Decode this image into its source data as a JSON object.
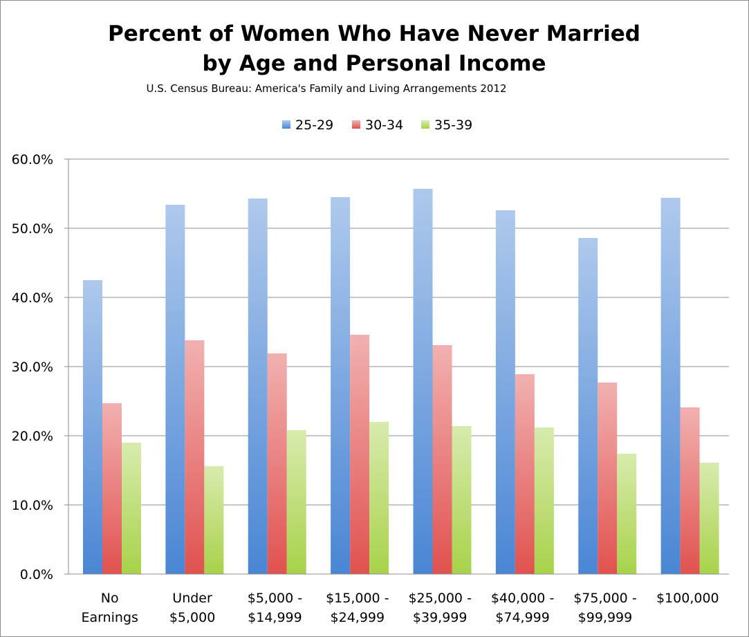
{
  "chart_data": {
    "type": "bar",
    "title_lines": [
      "Percent of Women Who Have Never Married",
      "by Age and Personal Income"
    ],
    "subtitle": "U.S. Census Bureau: America's Family and Living Arrangements 2012",
    "categories": [
      [
        "No",
        "Earnings"
      ],
      [
        "Under",
        "$5,000"
      ],
      [
        "$5,000 -",
        "$14,999"
      ],
      [
        "$15,000 -",
        "$24,999"
      ],
      [
        "$25,000 -",
        "$39,999"
      ],
      [
        "$40,000 -",
        "$74,999"
      ],
      [
        "$75,000 -",
        "$99,999"
      ],
      [
        "$100,000"
      ]
    ],
    "series": [
      {
        "name": "25-29",
        "color": "#4a86d4",
        "values": [
          42.5,
          53.4,
          54.3,
          54.5,
          55.7,
          52.6,
          48.6,
          54.4
        ]
      },
      {
        "name": "30-34",
        "color": "#e0524f",
        "values": [
          24.7,
          33.8,
          31.9,
          34.6,
          33.1,
          28.9,
          27.7,
          24.1
        ]
      },
      {
        "name": "35-39",
        "color": "#a8d24a",
        "values": [
          19.0,
          15.6,
          20.8,
          22.0,
          21.4,
          21.2,
          17.4,
          16.1
        ]
      }
    ],
    "ylim": [
      0,
      60
    ],
    "yticks": [
      "0.0%",
      "10.0%",
      "20.0%",
      "30.0%",
      "40.0%",
      "50.0%",
      "60.0%"
    ],
    "legend_position": "top",
    "grid": true
  }
}
